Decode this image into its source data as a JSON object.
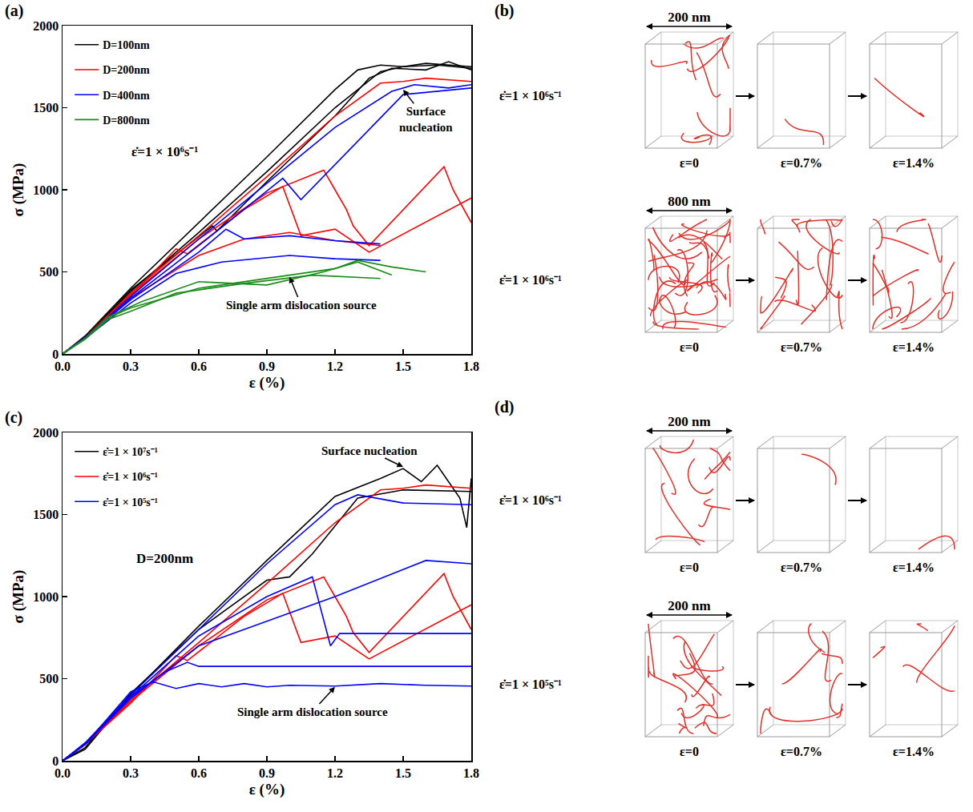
{
  "chart_data": [
    {
      "label": "(a)",
      "type": "line",
      "x_label": "ε (%)",
      "y_label": "σ (MPa)",
      "xlim": [
        0,
        1.8
      ],
      "ylim": [
        0,
        2000
      ],
      "xticks": [
        {
          "value": 0,
          "label": "0.0"
        },
        0.3,
        0.6,
        0.9,
        1.2,
        1.5,
        1.8
      ],
      "yticks": [
        0,
        500,
        1000,
        1500,
        2000
      ],
      "grid": false,
      "legend": "upper left",
      "annotations": [
        {
          "text": "ε̇=1 × 10⁶s⁻¹",
          "x": 0.45,
          "y": 1230
        },
        {
          "text": "Surface nucleation",
          "x": 1.6,
          "y": 1430,
          "arrow_to": [
            1.5,
            1610
          ]
        },
        {
          "text": "Single arm dislocation source",
          "x": 1.05,
          "y": 300,
          "arrow_to": [
            1.0,
            470
          ]
        }
      ],
      "series": [
        {
          "name": "D=100nm",
          "color": "#000000",
          "curves": [
            {
              "x": [
                0,
                0.1,
                0.3,
                0.6,
                0.9,
                1.2,
                1.3,
                1.4,
                1.5,
                1.6,
                1.7,
                1.8
              ],
              "values": [
                0,
                110,
                400,
                800,
                1200,
                1610,
                1730,
                1760,
                1750,
                1770,
                1760,
                1750
              ]
            },
            {
              "x": [
                0,
                0.1,
                0.3,
                0.66,
                0.68,
                0.9,
                1.2,
                1.35,
                1.45,
                1.6,
                1.7,
                1.8
              ],
              "values": [
                0,
                100,
                390,
                780,
                750,
                1050,
                1450,
                1680,
                1740,
                1730,
                1780,
                1730
              ]
            },
            {
              "x": [
                0,
                0.1,
                0.3,
                0.6,
                0.9,
                1.2,
                1.4,
                1.5,
                1.65,
                1.8
              ],
              "values": [
                0,
                100,
                380,
                740,
                1110,
                1500,
                1720,
                1750,
                1760,
                1740
              ]
            }
          ]
        },
        {
          "name": "D=200nm",
          "color": "#ff0000",
          "curves": [
            {
              "x": [
                0,
                0.1,
                0.3,
                0.6,
                0.9,
                1.2,
                1.4,
                1.5,
                1.6,
                1.7,
                1.8
              ],
              "values": [
                0,
                100,
                370,
                720,
                1080,
                1450,
                1650,
                1660,
                1680,
                1670,
                1660
              ]
            },
            {
              "x": [
                0,
                0.1,
                0.3,
                0.6,
                0.9,
                1.15,
                1.2,
                1.25,
                1.28,
                1.35,
                1.68,
                1.72,
                1.8
              ],
              "values": [
                0,
                100,
                360,
                700,
                980,
                1120,
                1000,
                880,
                780,
                660,
                1140,
                1000,
                800
              ]
            },
            {
              "x": [
                0,
                0.1,
                0.3,
                0.5,
                0.55,
                0.8,
                0.97,
                1.05,
                1.2,
                1.35,
                1.8
              ],
              "values": [
                0,
                100,
                350,
                640,
                610,
                880,
                1020,
                720,
                760,
                620,
                950
              ]
            },
            {
              "x": [
                0,
                0.1,
                0.3,
                0.6,
                0.8,
                1.0,
                1.2,
                1.4
              ],
              "values": [
                0,
                100,
                340,
                600,
                700,
                740,
                690,
                660
              ]
            }
          ]
        },
        {
          "name": "D=400nm",
          "color": "#0000ff",
          "curves": [
            {
              "x": [
                0,
                0.1,
                0.3,
                0.6,
                0.9,
                1.2,
                1.45,
                1.55,
                1.7,
                1.8
              ],
              "values": [
                0,
                100,
                350,
                700,
                1040,
                1380,
                1600,
                1640,
                1620,
                1640
              ]
            },
            {
              "x": [
                0,
                0.1,
                0.3,
                0.6,
                0.97,
                1.05,
                1.5,
                1.8
              ],
              "values": [
                0,
                100,
                340,
                660,
                1070,
                940,
                1580,
                1620
              ]
            },
            {
              "x": [
                0,
                0.1,
                0.3,
                0.6,
                0.72,
                0.8,
                1.0,
                1.2,
                1.4
              ],
              "values": [
                0,
                100,
                330,
                620,
                760,
                700,
                720,
                690,
                670
              ]
            },
            {
              "x": [
                0,
                0.1,
                0.3,
                0.5,
                0.7,
                1.0,
                1.2,
                1.4
              ],
              "values": [
                0,
                95,
                310,
                490,
                560,
                600,
                580,
                570
              ]
            }
          ]
        },
        {
          "name": "D=800nm",
          "color": "#1a8c1a",
          "curves": [
            {
              "x": [
                0,
                0.1,
                0.2,
                0.3,
                0.6,
                0.9,
                1.2,
                1.3,
                1.45,
                1.6
              ],
              "values": [
                0,
                95,
                220,
                280,
                400,
                460,
                520,
                570,
                530,
                500
              ]
            },
            {
              "x": [
                0,
                0.1,
                0.2,
                0.3,
                0.5,
                0.8,
                1.1,
                1.4
              ],
              "values": [
                0,
                90,
                210,
                260,
                370,
                430,
                480,
                460
              ]
            },
            {
              "x": [
                0,
                0.1,
                0.2,
                0.35,
                0.6,
                0.9,
                1.15,
                1.3,
                1.45
              ],
              "values": [
                0,
                95,
                225,
                320,
                440,
                420,
                500,
                560,
                480
              ]
            }
          ]
        }
      ]
    },
    {
      "label": "(c)",
      "type": "line",
      "x_label": "ε (%)",
      "y_label": "σ (MPa)",
      "xlim": [
        0,
        1.8
      ],
      "ylim": [
        0,
        2000
      ],
      "xticks": [
        {
          "value": 0,
          "label": "0.0"
        },
        0.3,
        0.6,
        0.9,
        1.2,
        1.5,
        1.8
      ],
      "yticks": [
        0,
        500,
        1000,
        1500,
        2000
      ],
      "grid": false,
      "legend": "upper left",
      "annotations": [
        {
          "text": "D=200nm",
          "x": 0.45,
          "y": 1230
        },
        {
          "text": "Surface nucleation",
          "x": 1.35,
          "y": 1890,
          "arrow_to": [
            1.5,
            1790
          ]
        },
        {
          "text": "Single arm dislocation source",
          "x": 1.1,
          "y": 300,
          "arrow_to": [
            1.2,
            450
          ]
        }
      ],
      "series": [
        {
          "name": "ε̇=1 × 10⁷s⁻¹",
          "color": "#000000",
          "curves": [
            {
              "x": [
                0,
                0.1,
                0.3,
                0.6,
                0.9,
                1.2,
                1.4,
                1.5,
                1.58,
                1.65,
                1.75,
                1.78,
                1.8
              ],
              "values": [
                0,
                70,
                400,
                820,
                1220,
                1610,
                1720,
                1780,
                1700,
                1800,
                1600,
                1420,
                1720
              ]
            },
            {
              "x": [
                0,
                0.1,
                0.3,
                0.6,
                0.9,
                1.0,
                1.1,
                1.3,
                1.5,
                1.8
              ],
              "values": [
                0,
                80,
                410,
                800,
                1100,
                1120,
                1260,
                1600,
                1650,
                1640
              ]
            }
          ]
        },
        {
          "name": "ε̇=1 × 10⁶s⁻¹",
          "color": "#ff0000",
          "curves": [
            {
              "x": [
                0,
                0.1,
                0.3,
                0.6,
                0.9,
                1.2,
                1.4,
                1.5,
                1.6,
                1.7,
                1.8
              ],
              "values": [
                0,
                100,
                370,
                720,
                1080,
                1450,
                1650,
                1660,
                1680,
                1670,
                1660
              ]
            },
            {
              "x": [
                0,
                0.1,
                0.3,
                0.6,
                0.9,
                1.15,
                1.2,
                1.25,
                1.28,
                1.35,
                1.68,
                1.72,
                1.8
              ],
              "values": [
                0,
                100,
                360,
                700,
                980,
                1120,
                1000,
                880,
                780,
                660,
                1140,
                1000,
                800
              ]
            },
            {
              "x": [
                0,
                0.1,
                0.3,
                0.5,
                0.55,
                0.8,
                0.97,
                1.05,
                1.2,
                1.35,
                1.8
              ],
              "values": [
                0,
                100,
                350,
                640,
                610,
                880,
                1020,
                720,
                760,
                620,
                950
              ]
            }
          ]
        },
        {
          "name": "ε̇=1 × 10⁵s⁻¹",
          "color": "#0000ff",
          "curves": [
            {
              "x": [
                0,
                0.1,
                0.3,
                0.6,
                0.9,
                1.2,
                1.3,
                1.5,
                1.8
              ],
              "values": [
                0,
                110,
                400,
                800,
                1200,
                1560,
                1620,
                1570,
                1560
              ]
            },
            {
              "x": [
                0,
                0.1,
                0.3,
                0.6,
                0.9,
                1.1,
                1.18,
                1.22,
                1.8
              ],
              "values": [
                0,
                100,
                390,
                760,
                1000,
                1120,
                700,
                775,
                775
              ]
            },
            {
              "x": [
                0,
                0.1,
                0.3,
                0.45,
                0.55,
                0.6,
                1.8
              ],
              "values": [
                0,
                100,
                390,
                540,
                600,
                575,
                575
              ]
            },
            {
              "x": [
                0,
                0.1,
                0.3,
                0.4,
                0.5,
                0.6,
                0.7,
                0.8,
                0.9,
                1.0,
                1.2,
                1.4,
                1.6,
                1.8
              ],
              "values": [
                0,
                100,
                420,
                480,
                440,
                470,
                450,
                470,
                450,
                460,
                455,
                470,
                460,
                455
              ]
            },
            {
              "x": [
                0,
                0.1,
                0.3,
                0.6,
                0.9,
                1.2,
                1.6,
                1.8
              ],
              "values": [
                0,
                100,
                380,
                700,
                850,
                1000,
                1220,
                1200
              ]
            }
          ]
        }
      ]
    }
  ],
  "diagrams": [
    {
      "label": "(b)",
      "rows": [
        {
          "size": "200 nm",
          "rate": "ε̇=1 × 10⁶s⁻¹",
          "strains": [
            "ε=0",
            "ε=0.7%",
            "ε=1.4%"
          ]
        },
        {
          "size": "800 nm",
          "rate": "ε̇=1 × 10⁶s⁻¹",
          "strains": [
            "ε=0",
            "ε=0.7%",
            "ε=1.4%"
          ]
        }
      ]
    },
    {
      "label": "(d)",
      "rows": [
        {
          "size": "200 nm",
          "rate": "ε̇=1 × 10⁶s⁻¹",
          "strains": [
            "ε=0",
            "ε=0.7%",
            "ε=1.4%"
          ]
        },
        {
          "size": "200 nm",
          "rate": "ε̇=1 × 10⁵s⁻¹",
          "strains": [
            "ε=0",
            "ε=0.7%",
            "ε=1.4%"
          ]
        }
      ]
    }
  ]
}
